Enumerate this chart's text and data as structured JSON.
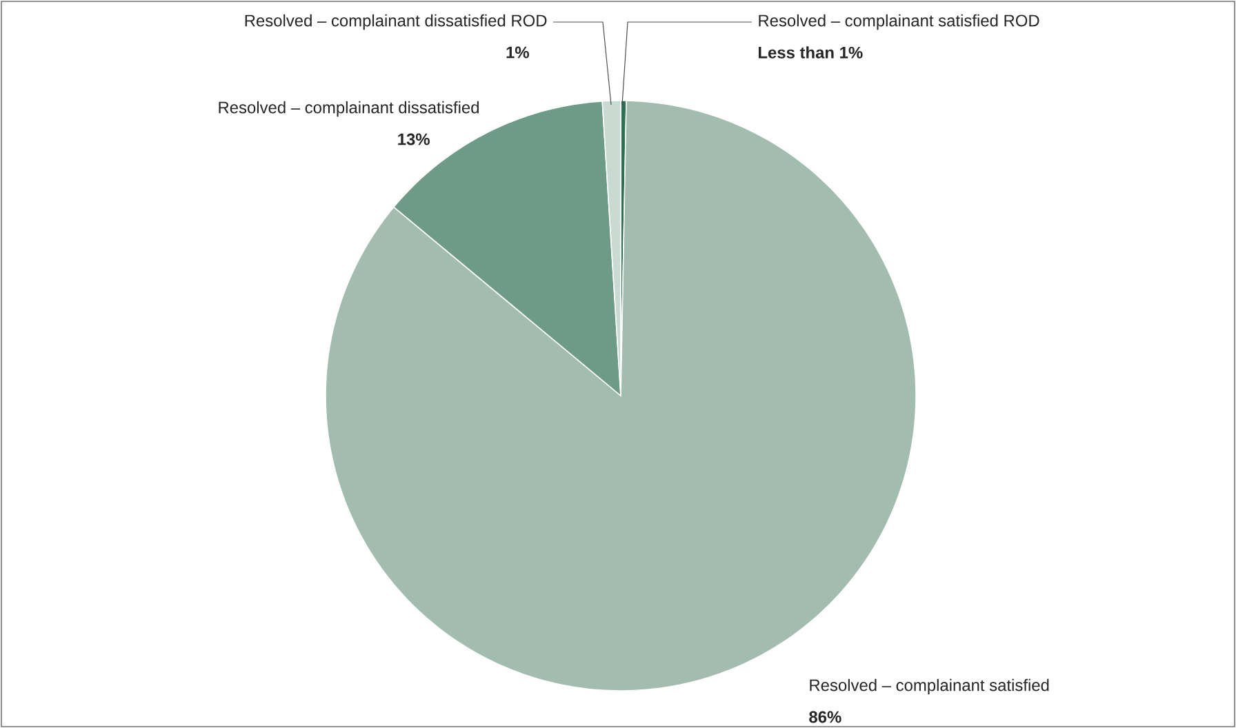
{
  "chart_data": {
    "type": "pie",
    "categories": [
      "Resolved – complainant satisfied ROD",
      "Resolved – complainant satisfied",
      "Resolved – complainant dissatisfied",
      "Resolved – complainant dissatisfied ROD"
    ],
    "values": [
      0.3,
      86,
      13,
      1
    ],
    "value_labels": [
      "Less than 1%",
      "86%",
      "13%",
      "1%"
    ],
    "colors": [
      "#2f6f52",
      "#a2bcb0",
      "#6e9a88",
      "#c8dad2"
    ]
  }
}
